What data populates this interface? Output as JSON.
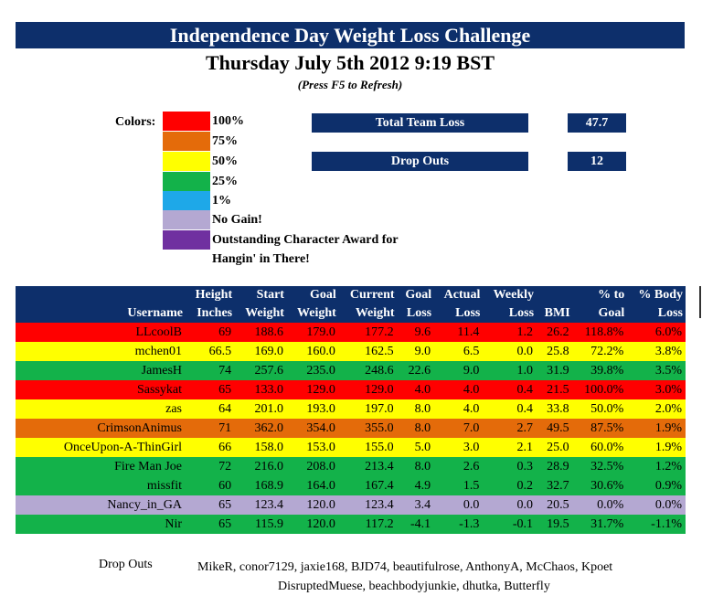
{
  "header": {
    "title": "Independence Day Weight Loss Challenge",
    "datetime": "Thursday July 5th 2012 9:19 BST",
    "refresh_hint": "(Press F5 to Refresh)"
  },
  "legend": {
    "label": "Colors:",
    "items": [
      {
        "label": "100%",
        "color": "#ff0000"
      },
      {
        "label": "75%",
        "color": "#e46b0a"
      },
      {
        "label": "50%",
        "color": "#ffff00"
      },
      {
        "label": "25%",
        "color": "#13b24a"
      },
      {
        "label": "1%",
        "color": "#1ea8e8"
      },
      {
        "label": "No Gain!",
        "color": "#b4a8d2"
      },
      {
        "label": "Outstanding Character Award for",
        "label2": "Hangin' in There!",
        "color": "#7030a0"
      }
    ]
  },
  "stats": {
    "total_team_loss_label": "Total Team Loss",
    "total_team_loss_value": "47.7",
    "drop_outs_label": "Drop Outs",
    "drop_outs_value": "12"
  },
  "table": {
    "headers_top": [
      "",
      "Height",
      "Start",
      "Goal",
      "Current",
      "Goal",
      "Actual",
      "Weekly",
      "",
      "% to",
      "% Body"
    ],
    "headers_bottom": [
      "Username",
      "Inches",
      "Weight",
      "Weight",
      "Weight",
      "Loss",
      "Loss",
      "Loss",
      "BMI",
      "Goal",
      "Loss"
    ],
    "rows": [
      {
        "color": "red",
        "cells": [
          "LLcoolB",
          "69",
          "188.6",
          "179.0",
          "177.2",
          "9.6",
          "11.4",
          "1.2",
          "26.2",
          "118.8%",
          "6.0%"
        ]
      },
      {
        "color": "yellow",
        "cells": [
          "mchen01",
          "66.5",
          "169.0",
          "160.0",
          "162.5",
          "9.0",
          "6.5",
          "0.0",
          "25.8",
          "72.2%",
          "3.8%"
        ]
      },
      {
        "color": "green",
        "cells": [
          "JamesH",
          "74",
          "257.6",
          "235.0",
          "248.6",
          "22.6",
          "9.0",
          "1.0",
          "31.9",
          "39.8%",
          "3.5%"
        ]
      },
      {
        "color": "red",
        "cells": [
          "Sassykat",
          "65",
          "133.0",
          "129.0",
          "129.0",
          "4.0",
          "4.0",
          "0.4",
          "21.5",
          "100.0%",
          "3.0%"
        ]
      },
      {
        "color": "yellow",
        "cells": [
          "zas",
          "64",
          "201.0",
          "193.0",
          "197.0",
          "8.0",
          "4.0",
          "0.4",
          "33.8",
          "50.0%",
          "2.0%"
        ]
      },
      {
        "color": "orange",
        "cells": [
          "CrimsonAnimus",
          "71",
          "362.0",
          "354.0",
          "355.0",
          "8.0",
          "7.0",
          "2.7",
          "49.5",
          "87.5%",
          "1.9%"
        ]
      },
      {
        "color": "yellow",
        "cells": [
          "OnceUpon-A-ThinGirl",
          "66",
          "158.0",
          "153.0",
          "155.0",
          "5.0",
          "3.0",
          "2.1",
          "25.0",
          "60.0%",
          "1.9%"
        ]
      },
      {
        "color": "green",
        "cells": [
          "Fire Man Joe",
          "72",
          "216.0",
          "208.0",
          "213.4",
          "8.0",
          "2.6",
          "0.3",
          "28.9",
          "32.5%",
          "1.2%"
        ]
      },
      {
        "color": "green",
        "cells": [
          "missfit",
          "60",
          "168.9",
          "164.0",
          "167.4",
          "4.9",
          "1.5",
          "0.2",
          "32.7",
          "30.6%",
          "0.9%"
        ]
      },
      {
        "color": "lilac",
        "cells": [
          "Nancy_in_GA",
          "65",
          "123.4",
          "120.0",
          "123.4",
          "3.4",
          "0.0",
          "0.0",
          "20.5",
          "0.0%",
          "0.0%"
        ]
      },
      {
        "color": "green",
        "cells": [
          "Nir",
          "65",
          "115.9",
          "120.0",
          "117.2",
          "-4.1",
          "-1.3",
          "-0.1",
          "19.5",
          "31.7%",
          "-1.1%"
        ]
      }
    ]
  },
  "dropouts": {
    "label": "Drop Outs",
    "line1": "MikeR, conor7129, jaxie168, BJD74, beautifulrose, AnthonyA, McChaos, Kpoet",
    "line2": "DisruptedMuese, beachbodyjunkie, dhutka, Butterfly"
  }
}
